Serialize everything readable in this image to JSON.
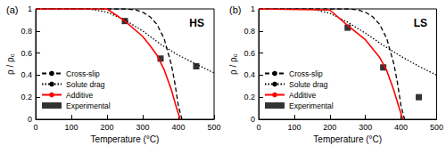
{
  "chart_data": [
    {
      "type": "line",
      "panel": "(a)",
      "title": "HS",
      "x_label": "Temperature (°C)",
      "y_label": "ρ / ρ₀",
      "xlim": [
        0,
        500
      ],
      "xticks": [
        0,
        100,
        200,
        300,
        400,
        500
      ],
      "ylim": [
        0,
        1
      ],
      "yticks": [
        0,
        0.2,
        0.4,
        0.6,
        0.8,
        1
      ],
      "grid": false,
      "legend": "lower left",
      "series": [
        {
          "name": "Cross-slip",
          "type": "line",
          "color": "#000000",
          "line_style": "dashed",
          "marker": "none",
          "x": [
            0,
            250,
            280,
            300,
            320,
            340,
            360,
            380,
            390,
            400,
            410
          ],
          "values": [
            1,
            1,
            0.99,
            0.97,
            0.93,
            0.86,
            0.73,
            0.5,
            0.33,
            0.12,
            0
          ]
        },
        {
          "name": "Solute drag",
          "type": "line",
          "color": "#000000",
          "line_style": "dotted",
          "marker": "none",
          "x": [
            0,
            150,
            200,
            250,
            300,
            350,
            400,
            450,
            500
          ],
          "values": [
            1,
            1,
            0.97,
            0.9,
            0.8,
            0.68,
            0.58,
            0.5,
            0.42
          ]
        },
        {
          "name": "Additive",
          "type": "line",
          "color": "#ff0000",
          "line_style": "solid",
          "marker": "none",
          "x": [
            0,
            200,
            250,
            300,
            320,
            340,
            360,
            380,
            395,
            405
          ],
          "values": [
            1,
            1,
            0.89,
            0.75,
            0.67,
            0.58,
            0.45,
            0.27,
            0.1,
            0
          ]
        },
        {
          "name": "Experimental",
          "type": "scatter",
          "color": "#000000",
          "marker": "square",
          "x": [
            250,
            350,
            450
          ],
          "values": [
            0.89,
            0.55,
            0.48
          ]
        }
      ]
    },
    {
      "type": "line",
      "panel": "(b)",
      "title": "LS",
      "x_label": "Temperature (°C)",
      "y_label": "ρ / ρ₀",
      "xlim": [
        0,
        500
      ],
      "xticks": [
        0,
        100,
        200,
        300,
        400,
        500
      ],
      "ylim": [
        0,
        1
      ],
      "yticks": [
        0,
        0.2,
        0.4,
        0.6,
        0.8,
        1
      ],
      "grid": false,
      "legend": "lower left",
      "series": [
        {
          "name": "Cross-slip",
          "type": "line",
          "color": "#000000",
          "line_style": "dashed",
          "marker": "none",
          "x": [
            0,
            250,
            280,
            300,
            320,
            340,
            360,
            380,
            390,
            400,
            410
          ],
          "values": [
            1,
            1,
            0.99,
            0.97,
            0.93,
            0.86,
            0.73,
            0.5,
            0.33,
            0.12,
            0
          ]
        },
        {
          "name": "Solute drag",
          "type": "line",
          "color": "#000000",
          "line_style": "dotted",
          "marker": "none",
          "x": [
            0,
            150,
            200,
            250,
            300,
            350,
            400,
            450,
            500
          ],
          "values": [
            1,
            1,
            0.96,
            0.88,
            0.78,
            0.67,
            0.57,
            0.48,
            0.4
          ]
        },
        {
          "name": "Additive",
          "type": "line",
          "color": "#ff0000",
          "line_style": "solid",
          "marker": "none",
          "x": [
            0,
            200,
            250,
            300,
            340,
            360,
            380,
            395,
            405
          ],
          "values": [
            1,
            0.99,
            0.85,
            0.72,
            0.56,
            0.44,
            0.26,
            0.1,
            0
          ]
        },
        {
          "name": "Experimental",
          "type": "scatter",
          "color": "#000000",
          "marker": "square",
          "x": [
            250,
            350,
            450
          ],
          "values": [
            0.83,
            0.47,
            0.2
          ]
        }
      ]
    }
  ]
}
